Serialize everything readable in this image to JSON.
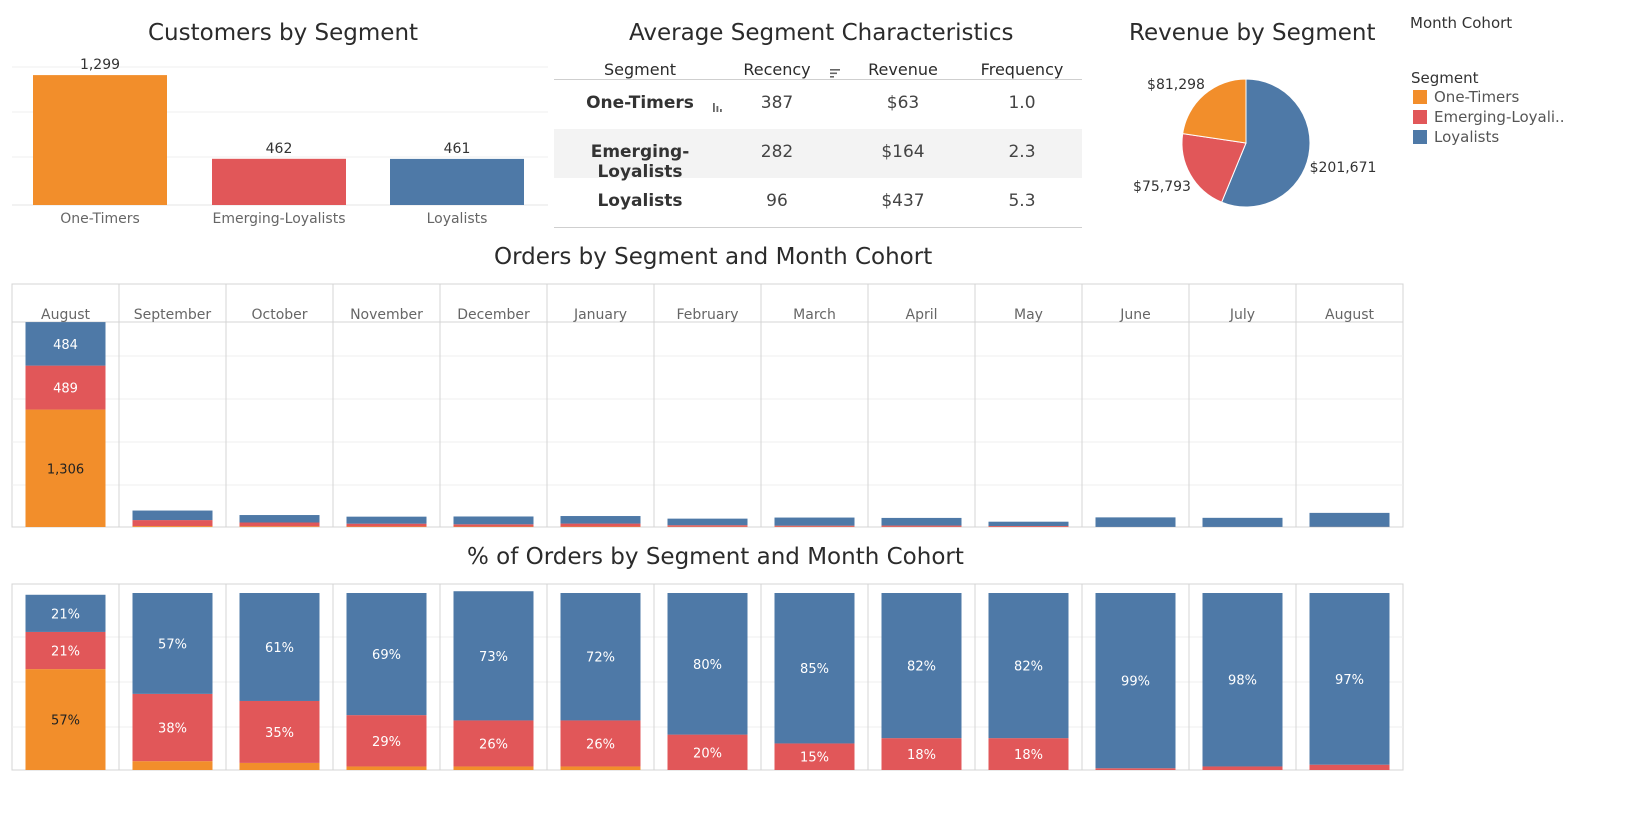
{
  "colors": {
    "one_timers": "#F28E2B",
    "emerging": "#E15759",
    "loyalists": "#4E79A7"
  },
  "legend": {
    "month_cohort_title": "Month Cohort",
    "segment_title": "Segment",
    "items": [
      "One-Timers",
      "Emerging-Loyali..",
      "Loyalists"
    ]
  },
  "chart_data": [
    {
      "type": "bar",
      "title": "Customers by Segment",
      "categories": [
        "One-Timers",
        "Emerging-Loyalists",
        "Loyalists"
      ],
      "values": [
        1299,
        462,
        461
      ],
      "value_labels": [
        "1,299",
        "462",
        "461"
      ],
      "ylim": [
        0,
        1450
      ]
    },
    {
      "type": "table",
      "title": "Average Segment Characteristics",
      "columns": [
        "Segment",
        "Recency",
        "Revenue",
        "Frequency"
      ],
      "rows": [
        [
          "One-Timers",
          "387",
          "$63",
          "1.0"
        ],
        [
          "Emerging-Loyalists",
          "282",
          "$164",
          "2.3"
        ],
        [
          "Loyalists",
          "96",
          "$437",
          "5.3"
        ]
      ]
    },
    {
      "type": "pie",
      "title": "Revenue by Segment",
      "labels": [
        "One-Timers",
        "Emerging-Loyalists",
        "Loyalists"
      ],
      "values": [
        81298,
        75793,
        201671
      ],
      "value_labels": [
        "$81,298",
        "$75,793",
        "$201,671"
      ]
    },
    {
      "type": "bar",
      "stacked": true,
      "title": "Orders by Segment and Month Cohort",
      "categories": [
        "August",
        "September",
        "October",
        "November",
        "December",
        "January",
        "February",
        "March",
        "April",
        "May",
        "June",
        "July",
        "August"
      ],
      "series": [
        {
          "name": "One-Timers",
          "values": [
            1306,
            10,
            8,
            6,
            5,
            5,
            3,
            3,
            2,
            2,
            0,
            0,
            1
          ]
        },
        {
          "name": "Emerging-Loyalists",
          "values": [
            489,
            67,
            42,
            31,
            25,
            33,
            17,
            12,
            14,
            9,
            1,
            1,
            1
          ]
        },
        {
          "name": "Loyalists",
          "values": [
            484,
            106,
            83,
            78,
            87,
            84,
            73,
            90,
            85,
            48,
            106,
            101,
            155
          ]
        }
      ],
      "data_labels": {
        "0": [
          "1,306",
          "489",
          "484"
        ]
      },
      "ylim": [
        0,
        2400
      ]
    },
    {
      "type": "bar",
      "stacked": true,
      "percent": true,
      "title": "% of Orders by Segment and Month Cohort",
      "categories": [
        "August",
        "September",
        "October",
        "November",
        "December",
        "January",
        "February",
        "March",
        "April",
        "May",
        "June",
        "July",
        "August"
      ],
      "series": [
        {
          "name": "One-Timers",
          "values": [
            57,
            5,
            4,
            2,
            2,
            2,
            0,
            0,
            0,
            0,
            0,
            0,
            0
          ]
        },
        {
          "name": "Emerging-Loyalists",
          "values": [
            21,
            38,
            35,
            29,
            26,
            26,
            20,
            15,
            18,
            18,
            1,
            2,
            3
          ]
        },
        {
          "name": "Loyalists",
          "values": [
            21,
            57,
            61,
            69,
            73,
            72,
            80,
            85,
            82,
            82,
            99,
            98,
            97
          ]
        }
      ],
      "labels": {
        "One-Timers": [
          "57%",
          "",
          "",
          "",
          "",
          "",
          "",
          "",
          "",
          "",
          "",
          "",
          ""
        ],
        "Emerging-Loyalists": [
          "21%",
          "38%",
          "35%",
          "29%",
          "26%",
          "26%",
          "20%",
          "15%",
          "18%",
          "18%",
          "",
          "",
          ""
        ],
        "Loyalists": [
          "21%",
          "57%",
          "61%",
          "69%",
          "73%",
          "72%",
          "80%",
          "85%",
          "82%",
          "82%",
          "99%",
          "98%",
          "97%"
        ]
      },
      "ylim": [
        0,
        100
      ]
    }
  ]
}
